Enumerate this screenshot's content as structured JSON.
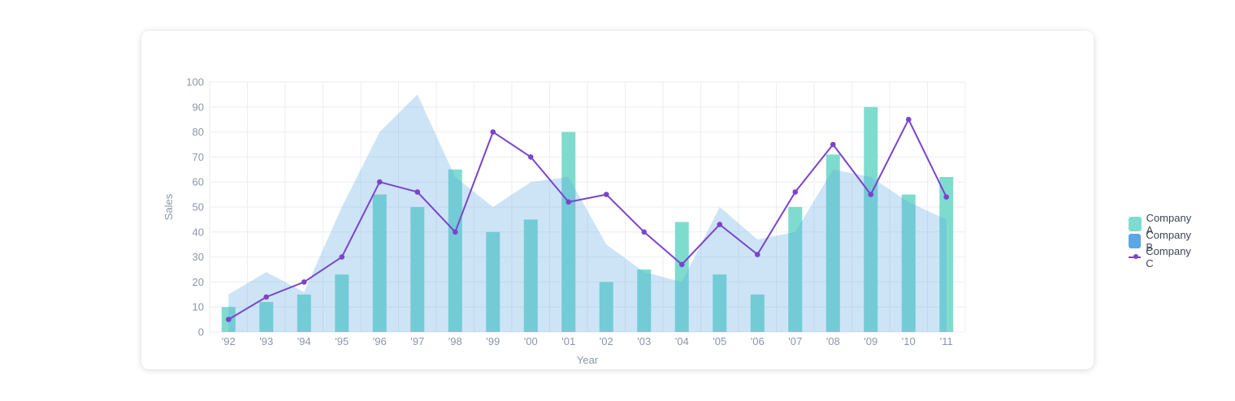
{
  "chart_data": {
    "type": "bar",
    "xlabel": "Year",
    "ylabel": "Sales",
    "ylim": [
      0,
      100
    ],
    "yticks": [
      0,
      10,
      20,
      30,
      40,
      50,
      60,
      70,
      80,
      90,
      100
    ],
    "categories": [
      "'92",
      "'93",
      "'94",
      "'95",
      "'96",
      "'97",
      "'98",
      "'99",
      "'00",
      "'01",
      "'02",
      "'03",
      "'04",
      "'05",
      "'06",
      "'07",
      "'08",
      "'09",
      "'10",
      "'11"
    ],
    "grid": true,
    "legend_position": "right",
    "series": [
      {
        "name": "Company A",
        "kind": "bar",
        "color": "#7edccf",
        "values": [
          10,
          12,
          15,
          23,
          55,
          50,
          65,
          40,
          45,
          80,
          20,
          25,
          44,
          23,
          15,
          50,
          71,
          90,
          55,
          62
        ]
      },
      {
        "name": "Company B",
        "kind": "area",
        "color": "#5aa6e6",
        "values": [
          15,
          24,
          16,
          50,
          80,
          95,
          62,
          50,
          60,
          62,
          35,
          24,
          20,
          50,
          37,
          40,
          65,
          62,
          52,
          45
        ]
      },
      {
        "name": "Company C",
        "kind": "line",
        "color": "#7a44cc",
        "values": [
          5,
          14,
          20,
          30,
          60,
          56,
          40,
          80,
          70,
          52,
          55,
          40,
          27,
          43,
          31,
          56,
          75,
          55,
          85,
          54
        ]
      }
    ]
  }
}
